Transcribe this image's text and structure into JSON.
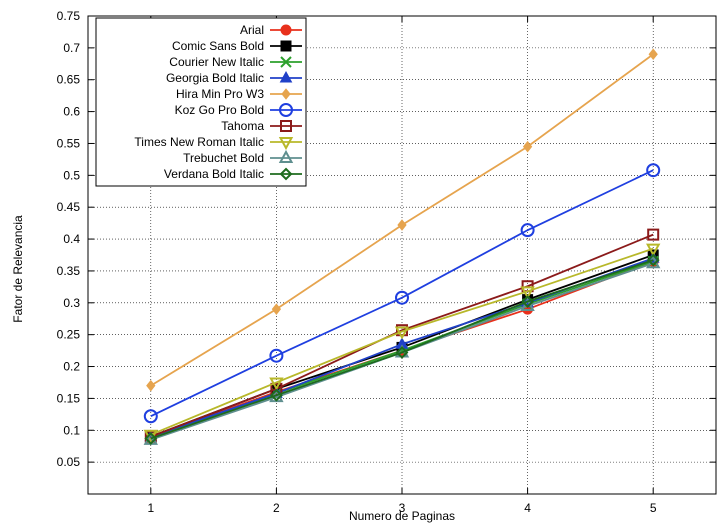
{
  "chart_data": {
    "type": "line",
    "xlabel": "Numero de Paginas",
    "ylabel": "Fator de Relevancia",
    "xlim": [
      0.5,
      5.5
    ],
    "ylim": [
      0.0,
      0.75
    ],
    "xticks": [
      "1",
      "2",
      "3",
      "4",
      "5"
    ],
    "yticks": [
      "0.05",
      "0.1",
      "0.15",
      "0.2",
      "0.25",
      "0.3",
      "0.35",
      "0.4",
      "0.45",
      "0.5",
      "0.55",
      "0.6",
      "0.65",
      "0.7",
      "0.75"
    ],
    "grid": true,
    "legend_position": "top-left",
    "x": [
      1,
      2,
      3,
      4,
      5
    ],
    "series": [
      {
        "name": "Arial",
        "color": "#e8301c",
        "marker": "filled-circle",
        "values": [
          0.09,
          0.16,
          0.225,
          0.29,
          0.365
        ]
      },
      {
        "name": "Comic Sans Bold",
        "color": "#000000",
        "marker": "filled-square",
        "values": [
          0.09,
          0.165,
          0.23,
          0.305,
          0.375
        ]
      },
      {
        "name": "Courier New Italic",
        "color": "#2ca02c",
        "marker": "x",
        "values": [
          0.088,
          0.158,
          0.225,
          0.298,
          0.365
        ]
      },
      {
        "name": "Georgia Bold Italic",
        "color": "#2041c8",
        "marker": "filled-triangle",
        "values": [
          0.09,
          0.158,
          0.235,
          0.3,
          0.37
        ]
      },
      {
        "name": "Hira Min Pro W3",
        "color": "#e6a44e",
        "marker": "filled-diamond",
        "values": [
          0.17,
          0.29,
          0.422,
          0.545,
          0.69
        ]
      },
      {
        "name": "Koz Go Pro Bold",
        "color": "#1f3fe0",
        "marker": "open-circle",
        "values": [
          0.122,
          0.217,
          0.308,
          0.414,
          0.508
        ]
      },
      {
        "name": "Tahoma",
        "color": "#8b1a1a",
        "marker": "open-square",
        "values": [
          0.09,
          0.165,
          0.257,
          0.326,
          0.407
        ]
      },
      {
        "name": "Times New Roman Italic",
        "color": "#b8b82a",
        "marker": "open-triangle-down",
        "values": [
          0.093,
          0.175,
          0.255,
          0.318,
          0.385
        ]
      },
      {
        "name": "Trebuchet Bold",
        "color": "#5f8f8f",
        "marker": "open-triangle",
        "values": [
          0.085,
          0.152,
          0.222,
          0.295,
          0.362
        ]
      },
      {
        "name": "Verdana Bold Italic",
        "color": "#1e6b1e",
        "marker": "open-diamond",
        "values": [
          0.087,
          0.155,
          0.222,
          0.302,
          0.367
        ]
      }
    ]
  }
}
